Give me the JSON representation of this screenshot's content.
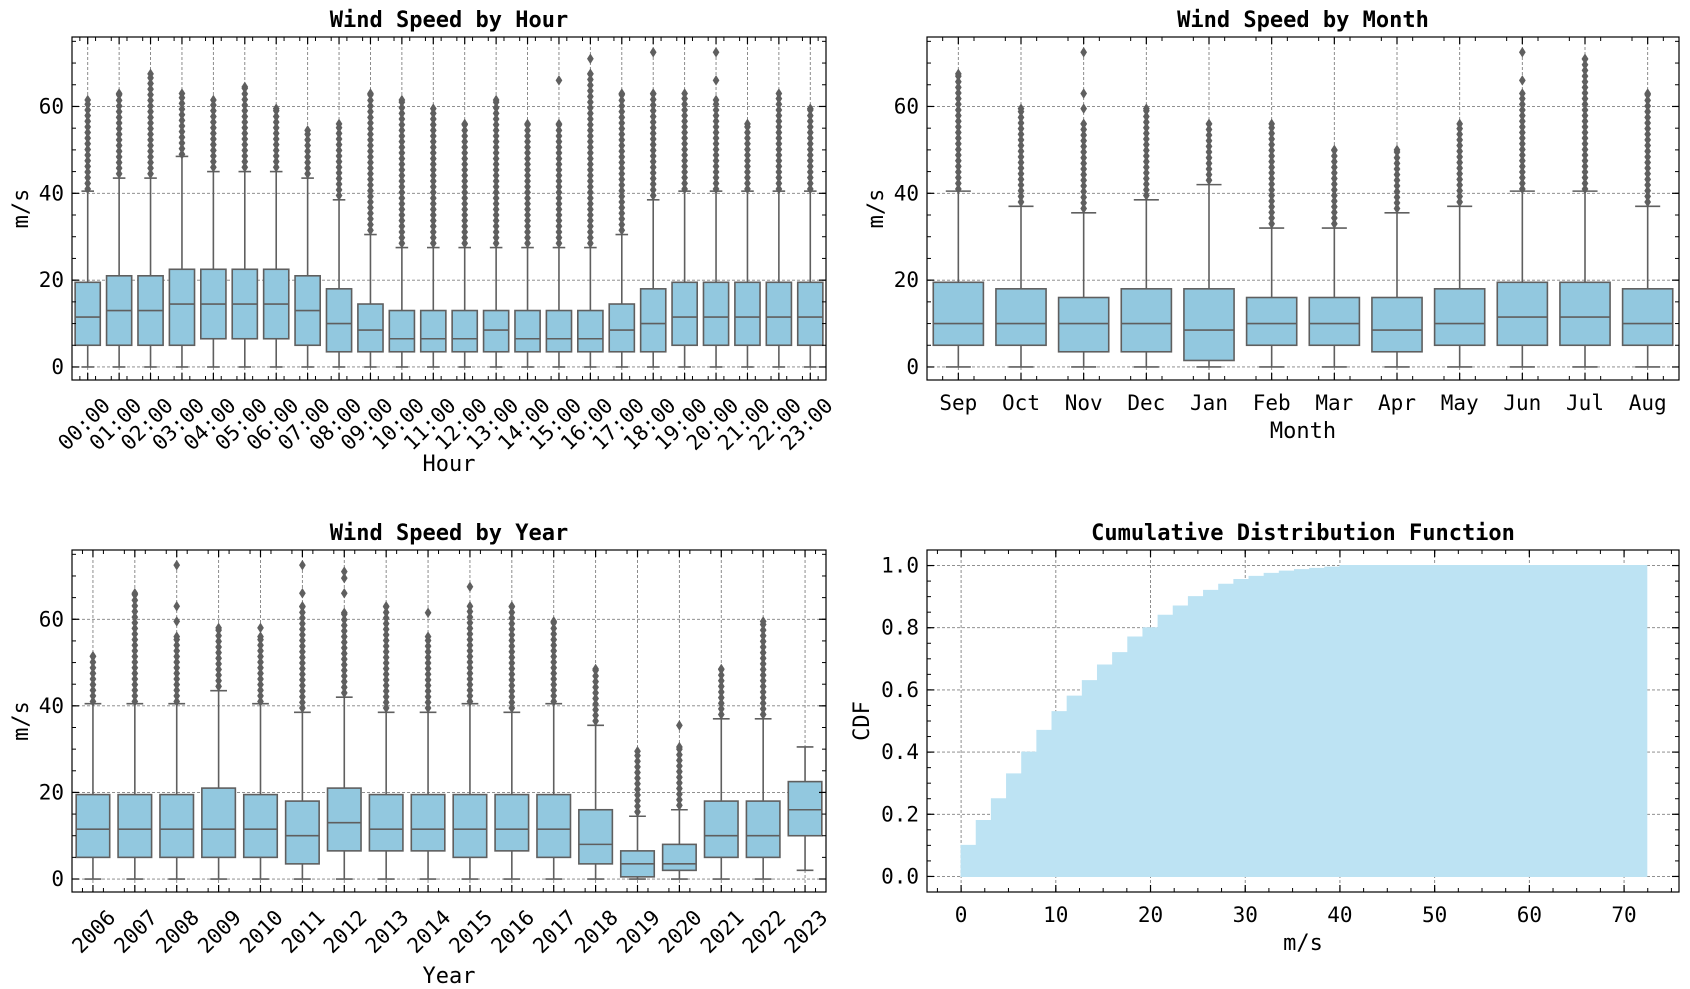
{
  "colors": {
    "box_fill": "#92c8df",
    "box_edge": "#5f5f5f",
    "grid": "#808080",
    "cdf_fill": "#bde3f3"
  },
  "chart_data": [
    {
      "type": "box",
      "title": "Wind Speed by Hour",
      "xlabel": "Hour",
      "ylabel": "m/s",
      "ylim": [
        -3,
        76
      ],
      "yticks": [
        0,
        20,
        40,
        60
      ],
      "xtick_rotation": 45,
      "grid": true,
      "categories": [
        "00:00",
        "01:00",
        "02:00",
        "03:00",
        "04:00",
        "05:00",
        "06:00",
        "07:00",
        "08:00",
        "09:00",
        "10:00",
        "11:00",
        "12:00",
        "13:00",
        "14:00",
        "15:00",
        "16:00",
        "17:00",
        "18:00",
        "19:00",
        "20:00",
        "21:00",
        "22:00",
        "23:00"
      ],
      "boxes": [
        {
          "q1": 5,
          "median": 11.5,
          "q3": 19.5,
          "whislo": 0,
          "whishi": 40.5,
          "flier_min": 41,
          "flier_max": 61.5
        },
        {
          "q1": 5,
          "median": 13,
          "q3": 21,
          "whislo": 0,
          "whishi": 43.5,
          "flier_min": 44.5,
          "flier_max": 63
        },
        {
          "q1": 5,
          "median": 13,
          "q3": 21,
          "whislo": 0,
          "whishi": 43.5,
          "flier_min": 44.5,
          "flier_max": 67.5
        },
        {
          "q1": 5,
          "median": 14.5,
          "q3": 22.5,
          "whislo": 0,
          "whishi": 48.5,
          "flier_min": 49,
          "flier_max": 63
        },
        {
          "q1": 6.5,
          "median": 14.5,
          "q3": 22.5,
          "whislo": 0,
          "whishi": 45,
          "flier_min": 46,
          "flier_max": 61.5
        },
        {
          "q1": 6.5,
          "median": 14.5,
          "q3": 22.5,
          "whislo": 0,
          "whishi": 45,
          "flier_min": 46,
          "flier_max": 64.5
        },
        {
          "q1": 6.5,
          "median": 14.5,
          "q3": 22.5,
          "whislo": 0,
          "whishi": 45,
          "flier_min": 46,
          "flier_max": 59.5
        },
        {
          "q1": 5,
          "median": 13,
          "q3": 21,
          "whislo": 0,
          "whishi": 43.5,
          "flier_min": 44.5,
          "flier_max": 54.5
        },
        {
          "q1": 3.5,
          "median": 10,
          "q3": 18,
          "whislo": 0,
          "whishi": 38.5,
          "flier_min": 39.5,
          "flier_max": 56
        },
        {
          "q1": 3.5,
          "median": 8.5,
          "q3": 14.5,
          "whislo": 0,
          "whishi": 30.5,
          "flier_min": 31.5,
          "flier_max": 63
        },
        {
          "q1": 3.5,
          "median": 6.5,
          "q3": 13,
          "whislo": 0,
          "whishi": 27.5,
          "flier_min": 28.5,
          "flier_max": 61.5
        },
        {
          "q1": 3.5,
          "median": 6.5,
          "q3": 13,
          "whislo": 0,
          "whishi": 27.5,
          "flier_min": 28.5,
          "flier_max": 59.5
        },
        {
          "q1": 3.5,
          "median": 6.5,
          "q3": 13,
          "whislo": 0,
          "whishi": 27.5,
          "flier_min": 28.5,
          "flier_max": 56
        },
        {
          "q1": 3.5,
          "median": 8.5,
          "q3": 13,
          "whislo": 0,
          "whishi": 27.5,
          "flier_min": 28.5,
          "flier_max": 61.5
        },
        {
          "q1": 3.5,
          "median": 6.5,
          "q3": 13,
          "whislo": 0,
          "whishi": 27.5,
          "flier_min": 28.5,
          "flier_max": 56
        },
        {
          "q1": 3.5,
          "median": 6.5,
          "q3": 13,
          "whislo": 0,
          "whishi": 27.5,
          "flier_min": 28.5,
          "flier_max": 56,
          "extra_fliers": [
            66
          ]
        },
        {
          "q1": 3.5,
          "median": 6.5,
          "q3": 13,
          "whislo": 0,
          "whishi": 27.5,
          "flier_min": 28.5,
          "flier_max": 67.5,
          "extra_fliers": [
            71
          ]
        },
        {
          "q1": 3.5,
          "median": 8.5,
          "q3": 14.5,
          "whislo": 0,
          "whishi": 30.5,
          "flier_min": 31.5,
          "flier_max": 63
        },
        {
          "q1": 3.5,
          "median": 10,
          "q3": 18,
          "whislo": 0,
          "whishi": 38.5,
          "flier_min": 39.5,
          "flier_max": 63,
          "extra_fliers": [
            72.5
          ]
        },
        {
          "q1": 5,
          "median": 11.5,
          "q3": 19.5,
          "whislo": 0,
          "whishi": 40.5,
          "flier_min": 41,
          "flier_max": 63
        },
        {
          "q1": 5,
          "median": 11.5,
          "q3": 19.5,
          "whislo": 0,
          "whishi": 40.5,
          "flier_min": 41,
          "flier_max": 61.5,
          "extra_fliers": [
            66,
            72.5
          ]
        },
        {
          "q1": 5,
          "median": 11.5,
          "q3": 19.5,
          "whislo": 0,
          "whishi": 40.5,
          "flier_min": 41,
          "flier_max": 56
        },
        {
          "q1": 5,
          "median": 11.5,
          "q3": 19.5,
          "whislo": 0,
          "whishi": 40.5,
          "flier_min": 41,
          "flier_max": 63
        },
        {
          "q1": 5,
          "median": 11.5,
          "q3": 19.5,
          "whislo": 0,
          "whishi": 40.5,
          "flier_min": 41,
          "flier_max": 59.5
        }
      ]
    },
    {
      "type": "box",
      "title": "Wind Speed by Month",
      "xlabel": "Month",
      "ylabel": "m/s",
      "ylim": [
        -3,
        76
      ],
      "yticks": [
        0,
        20,
        40,
        60
      ],
      "xtick_rotation": 0,
      "grid": true,
      "categories": [
        "Sep",
        "Oct",
        "Nov",
        "Dec",
        "Jan",
        "Feb",
        "Mar",
        "Apr",
        "May",
        "Jun",
        "Jul",
        "Aug"
      ],
      "boxes": [
        {
          "q1": 5,
          "median": 10,
          "q3": 19.5,
          "whislo": 0,
          "whishi": 40.5,
          "flier_min": 41,
          "flier_max": 67.5
        },
        {
          "q1": 5,
          "median": 10,
          "q3": 18,
          "whislo": 0,
          "whishi": 37,
          "flier_min": 38,
          "flier_max": 59.5
        },
        {
          "q1": 3.5,
          "median": 10,
          "q3": 16,
          "whislo": 0,
          "whishi": 35.5,
          "flier_min": 36.5,
          "flier_max": 56,
          "extra_fliers": [
            59.5,
            63,
            72.5
          ]
        },
        {
          "q1": 3.5,
          "median": 10,
          "q3": 18,
          "whislo": 0,
          "whishi": 38.5,
          "flier_min": 39.5,
          "flier_max": 59.5
        },
        {
          "q1": 1.5,
          "median": 8.5,
          "q3": 18,
          "whislo": 0,
          "whishi": 42,
          "flier_min": 43,
          "flier_max": 56
        },
        {
          "q1": 5,
          "median": 10,
          "q3": 16,
          "whislo": 0,
          "whishi": 32,
          "flier_min": 33,
          "flier_max": 56
        },
        {
          "q1": 5,
          "median": 10,
          "q3": 16,
          "whislo": 0,
          "whishi": 32,
          "flier_min": 33,
          "flier_max": 50
        },
        {
          "q1": 3.5,
          "median": 8.5,
          "q3": 16,
          "whislo": 0,
          "whishi": 35.5,
          "flier_min": 36.5,
          "flier_max": 50
        },
        {
          "q1": 5,
          "median": 10,
          "q3": 18,
          "whislo": 0,
          "whishi": 37,
          "flier_min": 38,
          "flier_max": 56
        },
        {
          "q1": 5,
          "median": 11.5,
          "q3": 19.5,
          "whislo": 0,
          "whishi": 40.5,
          "flier_min": 41,
          "flier_max": 63,
          "extra_fliers": [
            66,
            72.5
          ]
        },
        {
          "q1": 5,
          "median": 11.5,
          "q3": 19.5,
          "whislo": 0,
          "whishi": 40.5,
          "flier_min": 41,
          "flier_max": 71
        },
        {
          "q1": 5,
          "median": 10,
          "q3": 18,
          "whislo": 0,
          "whishi": 37,
          "flier_min": 38,
          "flier_max": 63
        }
      ]
    },
    {
      "type": "box",
      "title": "Wind Speed by Year",
      "xlabel": "Year",
      "ylabel": "m/s",
      "ylim": [
        -3,
        76
      ],
      "yticks": [
        0,
        20,
        40,
        60
      ],
      "xtick_rotation": 45,
      "grid": true,
      "categories": [
        "2006",
        "2007",
        "2008",
        "2009",
        "2010",
        "2011",
        "2012",
        "2013",
        "2014",
        "2015",
        "2016",
        "2017",
        "2018",
        "2019",
        "2020",
        "2021",
        "2022",
        "2023"
      ],
      "boxes": [
        {
          "q1": 5,
          "median": 11.5,
          "q3": 19.5,
          "whislo": 0,
          "whishi": 40.5,
          "flier_min": 41,
          "flier_max": 51.5
        },
        {
          "q1": 5,
          "median": 11.5,
          "q3": 19.5,
          "whislo": 0,
          "whishi": 40.5,
          "flier_min": 41,
          "flier_max": 66
        },
        {
          "q1": 5,
          "median": 11.5,
          "q3": 19.5,
          "whislo": 0,
          "whishi": 40.5,
          "flier_min": 41,
          "flier_max": 56,
          "extra_fliers": [
            59.5,
            63,
            72.5
          ]
        },
        {
          "q1": 5,
          "median": 11.5,
          "q3": 21,
          "whislo": 0,
          "whishi": 43.5,
          "flier_min": 44.5,
          "flier_max": 58
        },
        {
          "q1": 5,
          "median": 11.5,
          "q3": 19.5,
          "whislo": 0,
          "whishi": 40.5,
          "flier_min": 41,
          "flier_max": 56,
          "extra_fliers": [
            58
          ]
        },
        {
          "q1": 3.5,
          "median": 10,
          "q3": 18,
          "whislo": 0,
          "whishi": 38.5,
          "flier_min": 39.5,
          "flier_max": 63,
          "extra_fliers": [
            66,
            72.5
          ]
        },
        {
          "q1": 6.5,
          "median": 13,
          "q3": 21,
          "whislo": 0,
          "whishi": 42,
          "flier_min": 43,
          "flier_max": 61.5,
          "extra_fliers": [
            66,
            69.5,
            71
          ]
        },
        {
          "q1": 6.5,
          "median": 11.5,
          "q3": 19.5,
          "whislo": 0,
          "whishi": 38.5,
          "flier_min": 39.5,
          "flier_max": 63
        },
        {
          "q1": 6.5,
          "median": 11.5,
          "q3": 19.5,
          "whislo": 0,
          "whishi": 38.5,
          "flier_min": 39.5,
          "flier_max": 56,
          "extra_fliers": [
            61.5
          ]
        },
        {
          "q1": 5,
          "median": 11.5,
          "q3": 19.5,
          "whislo": 0,
          "whishi": 40.5,
          "flier_min": 41,
          "flier_max": 63,
          "extra_fliers": [
            67.5
          ]
        },
        {
          "q1": 6.5,
          "median": 11.5,
          "q3": 19.5,
          "whislo": 0,
          "whishi": 38.5,
          "flier_min": 39.5,
          "flier_max": 63
        },
        {
          "q1": 5,
          "median": 11.5,
          "q3": 19.5,
          "whislo": 0,
          "whishi": 40.5,
          "flier_min": 41,
          "flier_max": 59.5
        },
        {
          "q1": 3.5,
          "median": 8,
          "q3": 16,
          "whislo": 0,
          "whishi": 35.5,
          "flier_min": 36.5,
          "flier_max": 48.5
        },
        {
          "q1": 0.5,
          "median": 3.5,
          "q3": 6.5,
          "whislo": 0,
          "whishi": 14.5,
          "flier_min": 15.5,
          "flier_max": 29.5
        },
        {
          "q1": 2,
          "median": 3.5,
          "q3": 8,
          "whislo": 0,
          "whishi": 16,
          "flier_min": 17,
          "flier_max": 30.5,
          "extra_fliers": [
            35.5
          ]
        },
        {
          "q1": 5,
          "median": 10,
          "q3": 18,
          "whislo": 0,
          "whishi": 37,
          "flier_min": 38,
          "flier_max": 48.5
        },
        {
          "q1": 5,
          "median": 10,
          "q3": 18,
          "whislo": 0,
          "whishi": 37,
          "flier_min": 38,
          "flier_max": 59.5
        },
        {
          "q1": 10,
          "median": 16,
          "q3": 22.5,
          "whislo": 2,
          "whishi": 30.5
        }
      ]
    },
    {
      "type": "area",
      "step": true,
      "title": "Cumulative Distribution Function",
      "xlabel": "m/s",
      "ylabel": "CDF",
      "xlim": [
        -3.6,
        75.8
      ],
      "ylim": [
        -0.05,
        1.05
      ],
      "xticks": [
        0,
        10,
        20,
        30,
        40,
        50,
        60,
        70
      ],
      "yticks": [
        0.0,
        0.2,
        0.4,
        0.6,
        0.8,
        1.0
      ],
      "ytick_labels": [
        "0.0",
        "0.2",
        "0.4",
        "0.6",
        "0.8",
        "1.0"
      ],
      "grid": true,
      "x": [
        0,
        1.6,
        3.2,
        4.8,
        6.4,
        8,
        9.6,
        11.2,
        12.8,
        14.4,
        16,
        17.6,
        19.2,
        20.8,
        22.4,
        24,
        25.6,
        27.2,
        28.8,
        30.4,
        32,
        33.6,
        35.2,
        36.8,
        38.4,
        40,
        72.4
      ],
      "y": [
        0.1,
        0.18,
        0.25,
        0.33,
        0.4,
        0.47,
        0.53,
        0.58,
        0.63,
        0.68,
        0.72,
        0.77,
        0.8,
        0.84,
        0.87,
        0.9,
        0.92,
        0.94,
        0.955,
        0.965,
        0.975,
        0.982,
        0.987,
        0.991,
        0.995,
        1.0,
        1.0
      ]
    }
  ]
}
